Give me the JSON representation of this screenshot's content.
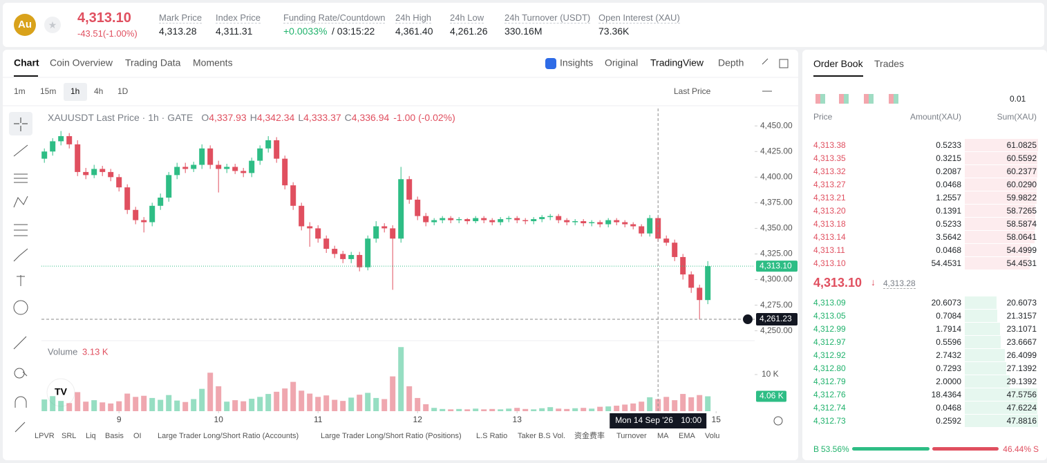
{
  "header": {
    "symbol": "Au",
    "price": "4,313.10",
    "change": "-43.51(-1.00%)",
    "stats": [
      {
        "label": "Mark Price",
        "value": "4,313.28"
      },
      {
        "label": "Index Price",
        "value": "4,311.31"
      },
      {
        "label": "Funding Rate/Countdown",
        "value": "+0.0033%",
        "value2": "/ 03:15:22"
      },
      {
        "label": "24h High",
        "value": "4,361.40"
      },
      {
        "label": "24h Low",
        "value": "4,261.26"
      },
      {
        "label": "24h Turnover (USDT)",
        "value": "330.16M"
      },
      {
        "label": "Open Interest (XAU)",
        "value": "73.36K"
      }
    ]
  },
  "tabs": [
    "Chart",
    "Coin Overview",
    "Trading Data",
    "Moments"
  ],
  "views": [
    "Insights",
    "Original",
    "TradingView",
    "Depth"
  ],
  "intervals": [
    "1m",
    "15m",
    "1h",
    "4h",
    "1D"
  ],
  "price_type": "Last Price",
  "indicators": [
    "LPVR",
    "SRL",
    "Liq",
    "Basis",
    "OI",
    "Large Trader Long/Short Ratio (Accounts)",
    "Large Trader Long/Short Ratio (Positions)",
    "L.S Ratio",
    "Taker B.S Vol.",
    "资金费率",
    "Turnover",
    "MA",
    "EMA",
    "Volu"
  ],
  "chart_data": {
    "type": "candlestick",
    "legend": {
      "title": "XAUUSDT Last Price · 1h · GATE",
      "items": [
        {
          "key": "O",
          "value": "4,337.93"
        },
        {
          "key": "H",
          "value": "4,342.34"
        },
        {
          "key": "L",
          "value": "4,333.37"
        },
        {
          "key": "C",
          "value": "4,336.94"
        }
      ],
      "change": "-1.00 (-0.02%)"
    },
    "up_color": "#2ebd85",
    "down_color": "#e04f5f",
    "x": [
      -18,
      -16,
      -14,
      -12,
      -10,
      -8,
      -6,
      -4,
      -2,
      0,
      2,
      4,
      6,
      8,
      10,
      12,
      14,
      16,
      18,
      20,
      22,
      24,
      26,
      28,
      30,
      32,
      34,
      36,
      38,
      40,
      42,
      44,
      46,
      48,
      50,
      52,
      54,
      56,
      58,
      60,
      62,
      64,
      66,
      68,
      70,
      72,
      74,
      76,
      78,
      80,
      82,
      84,
      86,
      88,
      90,
      92,
      94,
      96,
      98,
      100,
      102,
      104,
      106,
      108,
      110,
      112,
      114,
      116,
      118,
      120,
      122,
      124,
      126,
      128,
      130,
      132,
      134,
      136,
      138,
      140,
      142
    ],
    "open": [
      4418,
      4425,
      4435,
      4440,
      4432,
      4405,
      4402,
      4408,
      4405,
      4400,
      4390,
      4368,
      4358,
      4356,
      4372,
      4380,
      4402,
      4410,
      4408,
      4412,
      4428,
      4412,
      4408,
      4410,
      4406,
      4404,
      4416,
      4428,
      4436,
      4418,
      4392,
      4372,
      4352,
      4350,
      4340,
      4330,
      4325,
      4320,
      4324,
      4312,
      4340,
      4352,
      4350,
      4340,
      4398,
      4378,
      4362,
      4356,
      4358,
      4360,
      4358,
      4359,
      4357,
      4360,
      4358,
      4356,
      4359,
      4360,
      4358,
      4357,
      4359,
      4361,
      4362,
      4358,
      4356,
      4357,
      4355,
      4356,
      4354,
      4358,
      4356,
      4354,
      4352,
      4345,
      4360,
      4340,
      4336,
      4322,
      4305,
      4292,
      4280
    ],
    "high": [
      4428,
      4438,
      4445,
      4443,
      4436,
      4409,
      4412,
      4411,
      4408,
      4403,
      4393,
      4371,
      4361,
      4375,
      4384,
      4405,
      4414,
      4414,
      4415,
      4432,
      4431,
      4416,
      4413,
      4413,
      4409,
      4419,
      4431,
      4440,
      4439,
      4421,
      4395,
      4375,
      4356,
      4353,
      4343,
      4333,
      4328,
      4327,
      4327,
      4343,
      4357,
      4355,
      4353,
      4410,
      4401,
      4381,
      4365,
      4360,
      4362,
      4362,
      4361,
      4360,
      4362,
      4362,
      4360,
      4361,
      4362,
      4362,
      4360,
      4361,
      4363,
      4364,
      4364,
      4360,
      4359,
      4359,
      4358,
      4358,
      4360,
      4360,
      4358,
      4356,
      4354,
      4363,
      4362,
      4343,
      4339,
      4325,
      4308,
      4295,
      4318
    ],
    "low": [
      4414,
      4421,
      4431,
      4428,
      4401,
      4398,
      4399,
      4401,
      4396,
      4386,
      4364,
      4354,
      4346,
      4352,
      4368,
      4376,
      4398,
      4404,
      4405,
      4408,
      4408,
      4385,
      4404,
      4403,
      4400,
      4400,
      4412,
      4424,
      4414,
      4388,
      4368,
      4348,
      4332,
      4336,
      4326,
      4321,
      4316,
      4316,
      4308,
      4309,
      4336,
      4346,
      4290,
      4336,
      4374,
      4358,
      4352,
      4353,
      4355,
      4355,
      4355,
      4354,
      4355,
      4355,
      4353,
      4353,
      4356,
      4355,
      4354,
      4354,
      4356,
      4358,
      4355,
      4353,
      4353,
      4352,
      4352,
      4351,
      4351,
      4353,
      4351,
      4349,
      4342,
      4342,
      4337,
      4333,
      4318,
      4300,
      4287,
      4261,
      4276
    ],
    "close": [
      4425,
      4435,
      4440,
      4432,
      4405,
      4402,
      4408,
      4405,
      4400,
      4390,
      4368,
      4358,
      4356,
      4372,
      4380,
      4402,
      4410,
      4408,
      4412,
      4428,
      4412,
      4408,
      4410,
      4406,
      4404,
      4416,
      4428,
      4436,
      4418,
      4392,
      4372,
      4352,
      4350,
      4340,
      4330,
      4325,
      4320,
      4324,
      4312,
      4340,
      4352,
      4350,
      4340,
      4398,
      4378,
      4362,
      4356,
      4358,
      4360,
      4358,
      4359,
      4357,
      4360,
      4358,
      4356,
      4359,
      4360,
      4358,
      4357,
      4359,
      4361,
      4362,
      4358,
      4356,
      4357,
      4355,
      4356,
      4354,
      4358,
      4356,
      4354,
      4352,
      4345,
      4360,
      4340,
      4336,
      4322,
      4305,
      4292,
      4280,
      4313.1
    ],
    "volume": [
      3200,
      4100,
      2800,
      2200,
      5200,
      2600,
      3000,
      2400,
      2100,
      2700,
      4800,
      3900,
      4200,
      3600,
      3100,
      4400,
      2900,
      2500,
      3300,
      6100,
      10500,
      6800,
      2600,
      3000,
      2700,
      3400,
      3900,
      4700,
      5300,
      6200,
      8000,
      5600,
      4800,
      3900,
      4300,
      3100,
      2800,
      3700,
      4500,
      5000,
      3600,
      3300,
      9500,
      17500,
      6800,
      3600,
      1900,
      900,
      600,
      500,
      600,
      500,
      700,
      500,
      600,
      500,
      700,
      900,
      600,
      500,
      800,
      1100,
      700,
      600,
      800,
      900,
      700,
      1200,
      1300,
      1500,
      1800,
      2100,
      2600,
      3800,
      3300,
      3900,
      3000,
      4700,
      3800,
      4400,
      4060
    ],
    "xlim": [
      -18.7,
      153.3
    ],
    "xticks": [
      {
        "value": 0,
        "label": "9"
      },
      {
        "value": 24,
        "label": "10"
      },
      {
        "value": 48,
        "label": "11"
      },
      {
        "value": 72,
        "label": "12"
      },
      {
        "value": 96,
        "label": "13"
      },
      {
        "value": 144,
        "label": "15"
      }
    ],
    "ylim": [
      4241,
      4467
    ],
    "yticks": [
      {
        "value": 4250,
        "label": "4,250.00"
      },
      {
        "value": 4275,
        "label": "4,275.00"
      },
      {
        "value": 4300,
        "label": "4,300.00"
      },
      {
        "value": 4325,
        "label": "4,325.00"
      },
      {
        "value": 4350,
        "label": "4,350.00"
      },
      {
        "value": 4375,
        "label": "4,375.00"
      },
      {
        "value": 4400,
        "label": "4,400.00"
      },
      {
        "value": 4425,
        "label": "4,425.00"
      },
      {
        "value": 4450,
        "label": "4,450.00"
      }
    ],
    "y2lim": [
      0,
      18300
    ],
    "y2ticks": [
      {
        "value": 10000,
        "label": "10 K"
      }
    ],
    "volume_title": "Volume",
    "volume_value": "3.13 K",
    "last_volume": {
      "value": 4060,
      "label": "4.06 K"
    },
    "last_price": {
      "value": 4313.1,
      "label": "4,313.10"
    },
    "crosshair": {
      "x": 130,
      "price": {
        "value": 4261.23,
        "label": "4,261.23"
      },
      "date": "Mon 14 Sep '26",
      "time": "10:00"
    }
  },
  "order_book": {
    "tabs": [
      "Order Book",
      "Trades"
    ],
    "precision": "0.01",
    "columns": [
      "Price",
      "Amount(XAU)",
      "Sum(XAU)"
    ],
    "asks": [
      [
        "4,313.38",
        "0.5233",
        "61.0825"
      ],
      [
        "4,313.35",
        "0.3215",
        "60.5592"
      ],
      [
        "4,313.32",
        "0.2087",
        "60.2377"
      ],
      [
        "4,313.27",
        "0.0468",
        "60.0290"
      ],
      [
        "4,313.21",
        "1.2557",
        "59.9822"
      ],
      [
        "4,313.20",
        "0.1391",
        "58.7265"
      ],
      [
        "4,313.18",
        "0.5233",
        "58.5874"
      ],
      [
        "4,313.14",
        "3.5642",
        "58.0641"
      ],
      [
        "4,313.11",
        "0.0468",
        "54.4999"
      ],
      [
        "4,313.10",
        "54.4531",
        "54.4531"
      ]
    ],
    "mid_price": "4,313.10",
    "mark_price": "4,313.28",
    "bids": [
      [
        "4,313.09",
        "20.6073",
        "20.6073"
      ],
      [
        "4,313.05",
        "0.7084",
        "21.3157"
      ],
      [
        "4,312.99",
        "1.7914",
        "23.1071"
      ],
      [
        "4,312.97",
        "0.5596",
        "23.6667"
      ],
      [
        "4,312.92",
        "2.7432",
        "26.4099"
      ],
      [
        "4,312.80",
        "0.7293",
        "27.1392"
      ],
      [
        "4,312.79",
        "2.0000",
        "29.1392"
      ],
      [
        "4,312.76",
        "18.4364",
        "47.5756"
      ],
      [
        "4,312.74",
        "0.0468",
        "47.6224"
      ],
      [
        "4,312.73",
        "0.2592",
        "47.8816"
      ]
    ],
    "buy_letter": "B",
    "sell_letter": "S",
    "buy_ratio": {
      "value": 53.56,
      "label": "53.56%"
    },
    "sell_ratio": {
      "value": 46.44,
      "label": "46.44%"
    }
  }
}
